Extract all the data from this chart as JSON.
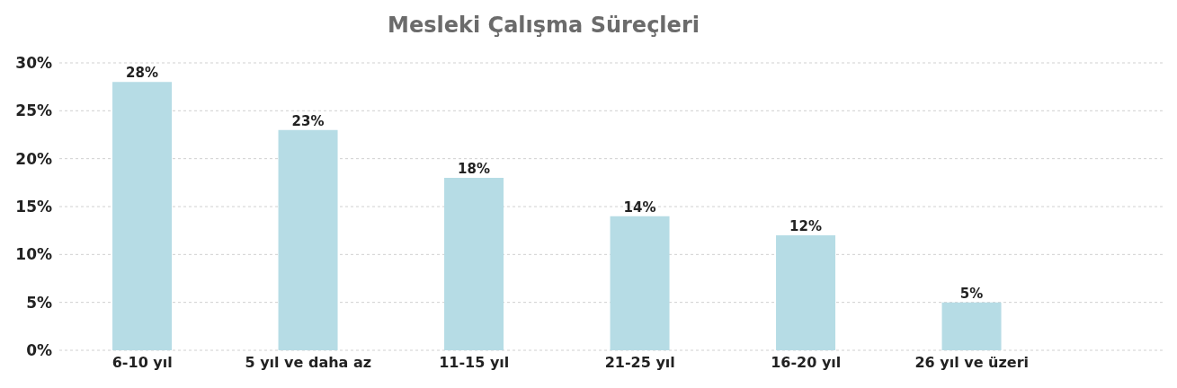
{
  "chart_data": {
    "type": "bar",
    "title": "Mesleki Çalışma Süreçleri",
    "categories": [
      "6-10 yıl",
      "5 yıl ve daha az",
      "11-15 yıl",
      "21-25 yıl",
      "16-20 yıl",
      "26 yıl ve üzeri"
    ],
    "values": [
      28,
      23,
      18,
      14,
      12,
      5
    ],
    "value_labels": [
      "28%",
      "23%",
      "18%",
      "14%",
      "12%",
      "5%"
    ],
    "color": "#b6dce5",
    "ylim": [
      0,
      30
    ],
    "yticks": [
      {
        "value": 0,
        "label": "0%"
      },
      {
        "value": 5,
        "label": "5%"
      },
      {
        "value": 10,
        "label": "10%"
      },
      {
        "value": 15,
        "label": "15%"
      },
      {
        "value": 20,
        "label": "20%"
      },
      {
        "value": 25,
        "label": "25%"
      },
      {
        "value": 30,
        "label": "30%"
      }
    ],
    "grid": "y"
  }
}
